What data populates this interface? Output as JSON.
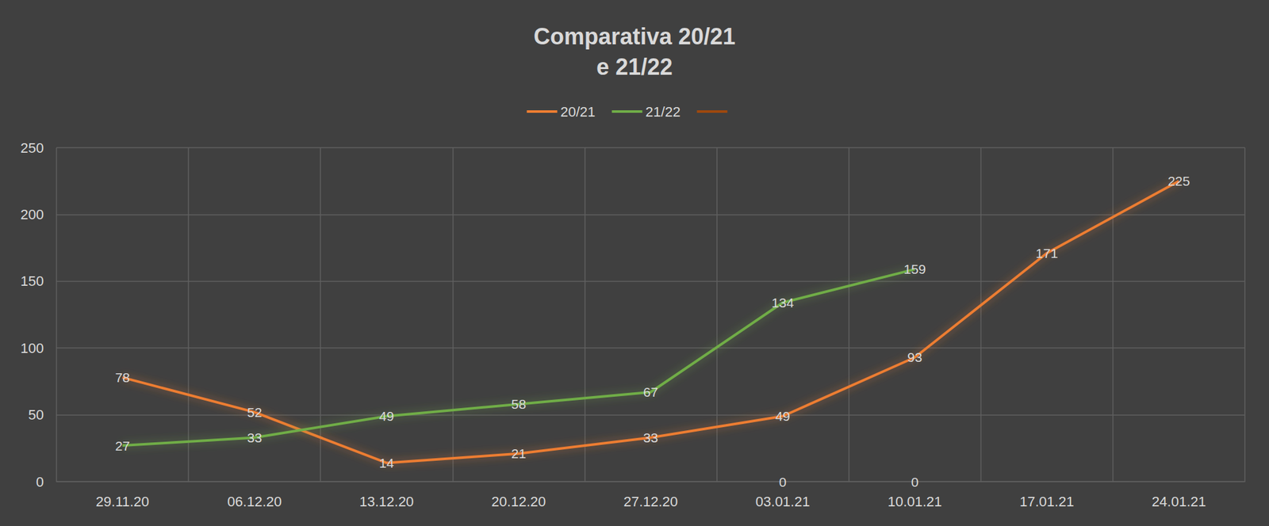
{
  "chart_data": {
    "type": "line",
    "title": "Comparativa 20/21\ne 21/22",
    "categories": [
      "29.11.20",
      "06.12.20",
      "13.12.20",
      "20.12.20",
      "27.12.20",
      "03.01.21",
      "10.01.21",
      "17.01.21",
      "24.01.21"
    ],
    "series": [
      {
        "name": "20/21",
        "color": "#ed7d31",
        "values": [
          78,
          52,
          14,
          21,
          33,
          49,
          93,
          171,
          225
        ]
      },
      {
        "name": "21/22",
        "color": "#70ad47",
        "values": [
          27,
          33,
          49,
          58,
          67,
          134,
          159,
          null,
          null
        ]
      },
      {
        "color": "#9e480e",
        "values": [
          null,
          null,
          null,
          null,
          null,
          0,
          0,
          null,
          null
        ]
      }
    ],
    "ylim": [
      0,
      250
    ],
    "yticks": [
      0,
      50,
      100,
      150,
      200,
      250
    ],
    "grid": true,
    "legend": "top",
    "data_labels": true,
    "marker": "none"
  }
}
